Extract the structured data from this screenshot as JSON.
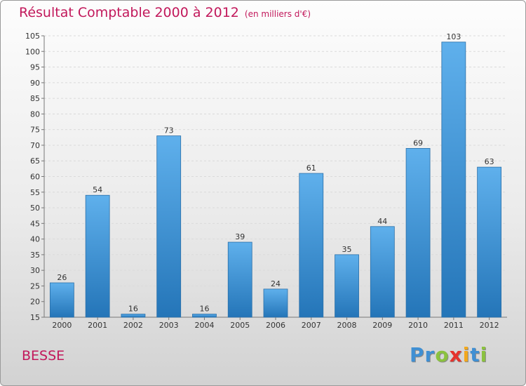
{
  "chart_data": {
    "type": "bar",
    "title": "Résultat Comptable 2000 à 2012",
    "subtitle": "(en milliers d'€)",
    "categories": [
      "2000",
      "2001",
      "2002",
      "2003",
      "2004",
      "2005",
      "2006",
      "2007",
      "2008",
      "2009",
      "2010",
      "2011",
      "2012"
    ],
    "values": [
      26,
      54,
      16,
      73,
      16,
      39,
      24,
      61,
      35,
      44,
      69,
      103,
      63
    ],
    "ylim": [
      15,
      105
    ],
    "yticks": [
      15,
      20,
      25,
      30,
      35,
      40,
      45,
      50,
      55,
      60,
      65,
      70,
      75,
      80,
      85,
      90,
      95,
      100,
      105
    ],
    "xlabel": "",
    "ylabel": "",
    "grid": true,
    "bar_color": "#3a8fd6"
  },
  "footer": {
    "city": "BESSE",
    "brand_letters": [
      "P",
      "r",
      "o",
      "x",
      "i",
      "t",
      "i"
    ],
    "brand_colors": [
      "#3f8fd3",
      "#3f8fd3",
      "#8bc23f",
      "#e5322d",
      "#f2a81d",
      "#3f8fd3",
      "#8bc23f"
    ]
  }
}
